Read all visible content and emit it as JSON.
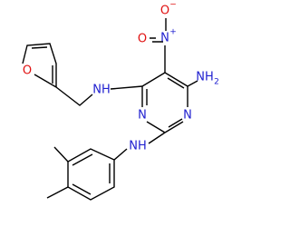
{
  "atoms": {
    "furan_oxygen": "O",
    "furfuryl_amine": "NH",
    "nitro_oxygen_left": "O",
    "nitro_nitrogen": "N",
    "nitro_charge_plus": "+",
    "nitro_oxygen_top": "O",
    "nitro_charge_minus": "−",
    "amino": "NH",
    "amino_subscript": "2",
    "ring_nitrogen_left": "N",
    "ring_nitrogen_right": "N",
    "aryl_amine": "NH"
  }
}
